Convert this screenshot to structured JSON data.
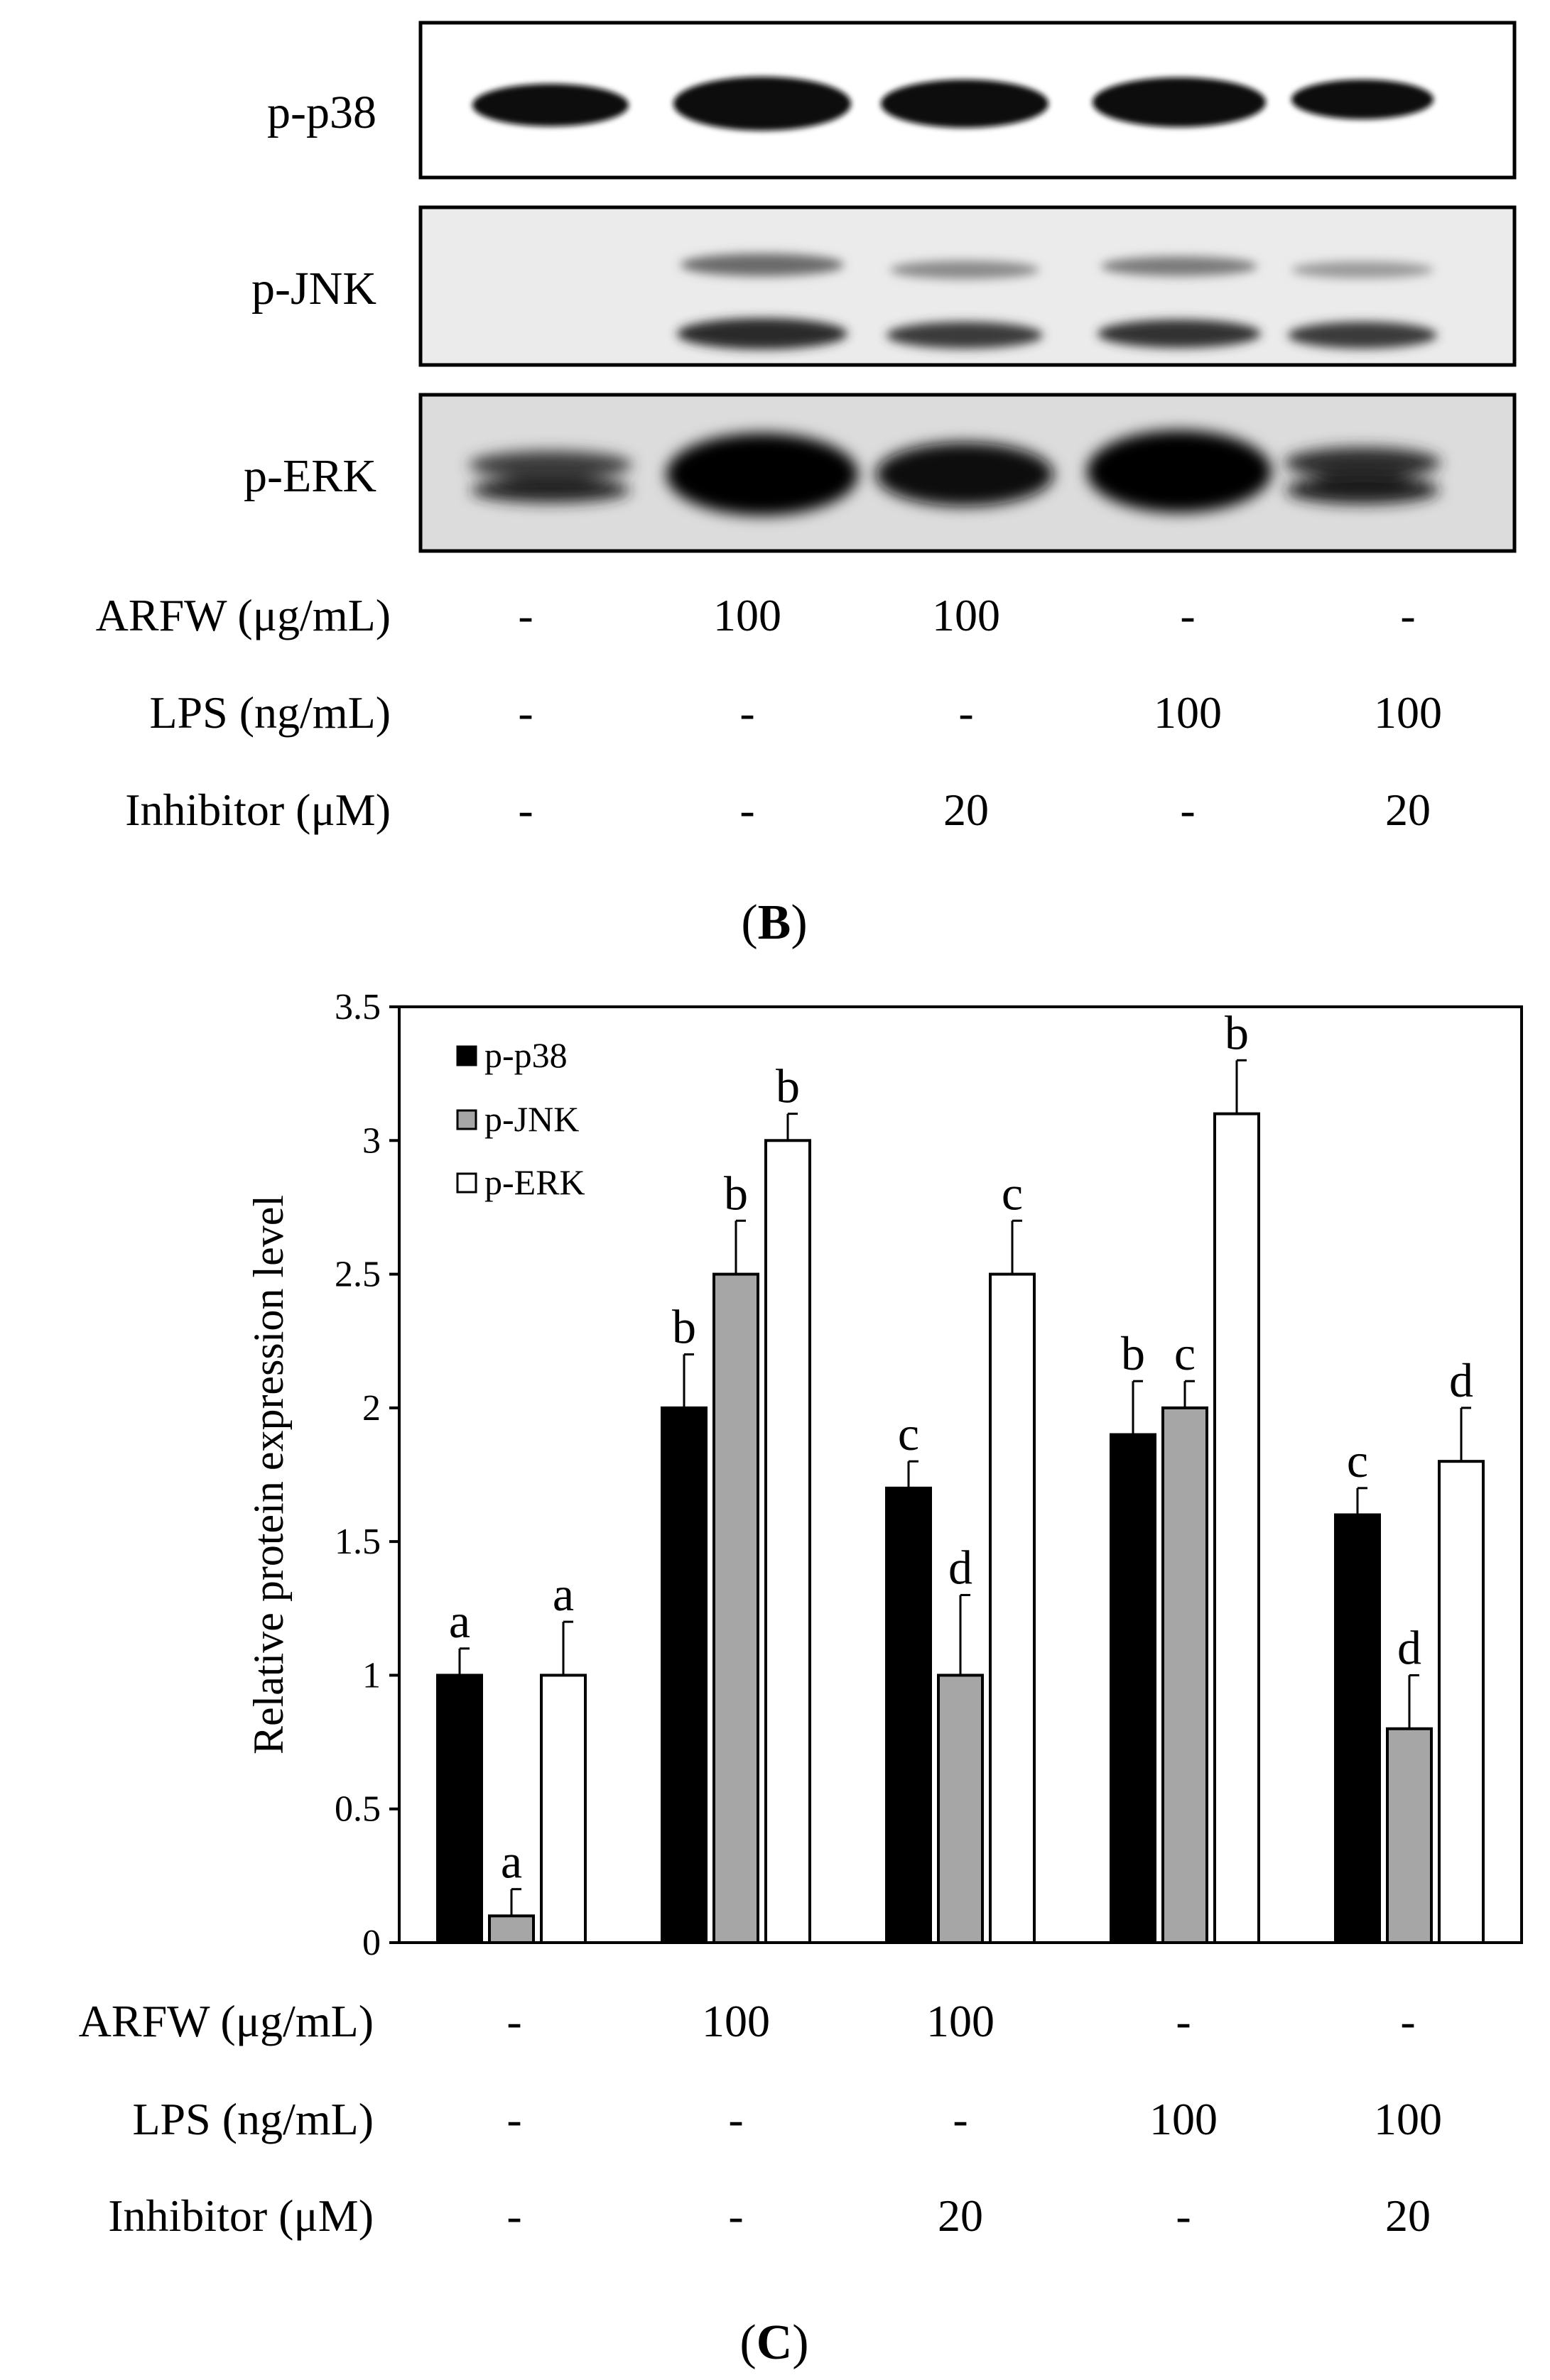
{
  "blot": {
    "proteins": [
      "p-p38",
      "p-JNK",
      "p-ERK"
    ]
  },
  "treatments": {
    "rows": [
      {
        "label": "ARFW (μg/mL)",
        "values": [
          "-",
          "100",
          "100",
          "-",
          "-"
        ]
      },
      {
        "label": "LPS (ng/mL)",
        "values": [
          "-",
          "-",
          "-",
          "100",
          "100"
        ]
      },
      {
        "label": "Inhibitor (μM)",
        "values": [
          "-",
          "-",
          "20",
          "-",
          "20"
        ]
      }
    ]
  },
  "panels": {
    "b": {
      "open": "(",
      "letter": "B",
      "close": ")"
    },
    "c": {
      "open": "(",
      "letter": "C",
      "close": ")"
    }
  },
  "chart_data": {
    "type": "bar",
    "ylabel": "Relative protein expression level",
    "ylim": [
      0,
      3.5
    ],
    "yticks": [
      "0",
      "0.5",
      "1",
      "1.5",
      "2",
      "2.5",
      "3",
      "3.5"
    ],
    "legend_position": "top-left",
    "groups": 5,
    "series": [
      {
        "name": "p-p38",
        "color": "#000000",
        "values": [
          1.0,
          2.0,
          1.7,
          1.9,
          1.6
        ],
        "errors": [
          0.1,
          0.2,
          0.1,
          0.2,
          0.1
        ],
        "letters": [
          "a",
          "b",
          "c",
          "b",
          "c"
        ]
      },
      {
        "name": "p-JNK",
        "color": "#a6a6a6",
        "values": [
          0.1,
          2.5,
          1.0,
          2.0,
          0.8
        ],
        "errors": [
          0.1,
          0.2,
          0.3,
          0.1,
          0.2
        ],
        "letters": [
          "a",
          "b",
          "d",
          "c",
          "d"
        ]
      },
      {
        "name": "p-ERK",
        "color": "#ffffff",
        "values": [
          1.0,
          3.0,
          2.5,
          3.1,
          1.8
        ],
        "errors": [
          0.2,
          0.1,
          0.2,
          0.2,
          0.2
        ],
        "letters": [
          "a",
          "b",
          "c",
          "b",
          "d"
        ]
      }
    ]
  }
}
